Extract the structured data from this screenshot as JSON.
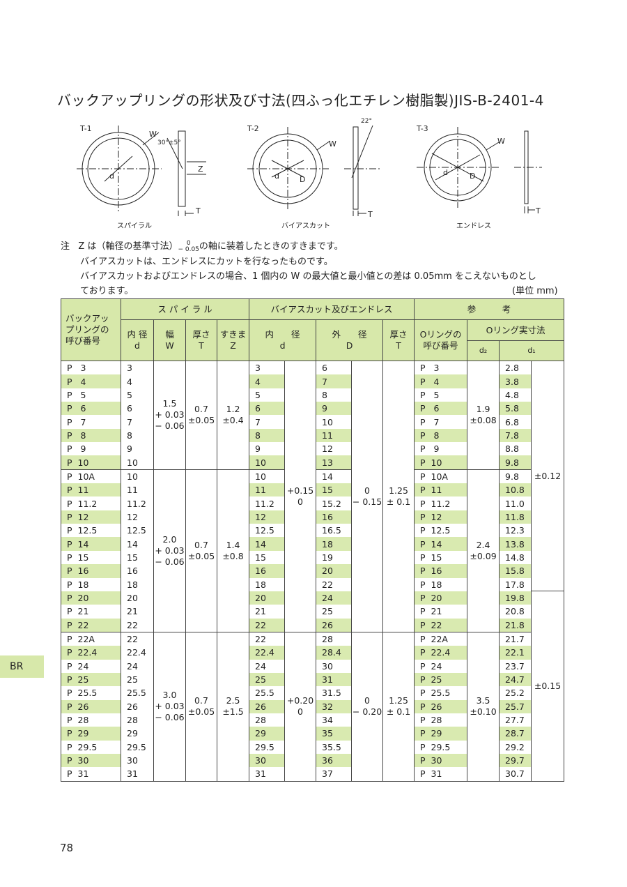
{
  "header": {
    "title": "バックアップリングの形状及び寸法(四ふっ化エチレン樹脂製)JIS-B-2401-4"
  },
  "diagrams": [
    {
      "label": "T-1",
      "caption": "スパイラル",
      "w": "W",
      "angle": "30°±5°",
      "z": "Z",
      "d": "d",
      "t": "T"
    },
    {
      "label": "T-2",
      "caption": "バイアスカット",
      "w": "W",
      "angle": "22°",
      "d": "d",
      "D": "D",
      "t": "T"
    },
    {
      "label": "T-3",
      "caption": "エンドレス",
      "w": "W",
      "d": "d",
      "D": "D",
      "t": "T"
    }
  ],
  "notes": {
    "label": "注",
    "before": "Z は（軸径の基準寸法）",
    "tol_upper": "0",
    "tol_lower": "− 0.05",
    "after": "の軸に装着したときのすきまです。",
    "lines": [
      "バイアスカットは、エンドレスにカットを行なったものです。",
      "バイアスカットおよびエンドレスの場合、1 個内の W の最大値と最小値との差は 0.05mm をこえないものとし",
      "ております。"
    ],
    "unit": "(単位 mm)"
  },
  "table": {
    "headers": {
      "number": [
        "バックアッ",
        "プリングの",
        "呼び番号"
      ],
      "spiral": "ス パ イ ラ ル",
      "bias": "バイアスカット及びエンドレス",
      "reference": "参　　　考",
      "sd": [
        "内 径",
        "d"
      ],
      "sw": [
        "幅",
        "W"
      ],
      "st": [
        "厚さ",
        "T"
      ],
      "sz": [
        "すきま",
        "Z"
      ],
      "bd": [
        "内　　径",
        "d"
      ],
      "bD": [
        "外　　径",
        "D"
      ],
      "bt": [
        "厚さ",
        "T"
      ],
      "oring_no": [
        "Oリングの",
        "呼び番号"
      ],
      "oring_size": "Oリング実寸法",
      "d2": "d₂",
      "d1": "d₁"
    },
    "rows": [
      {
        "cells": [
          "P   3",
          "3",
          "3",
          "6",
          "P   3",
          "2.8"
        ],
        "spiral": {
          "W": [
            "1.5",
            "+ 0.03",
            "− 0.06"
          ],
          "T": [
            "0.7",
            "±0.05"
          ],
          "Z": [
            "1.2",
            "±0.4"
          ]
        },
        "bias": {
          "d_tol": [
            "+0.15",
            "0"
          ],
          "D_tol": [
            "0",
            "− 0.15"
          ],
          "T": [
            "1.25",
            "± 0.1"
          ]
        },
        "d2": [
          "1.9",
          "±0.08"
        ],
        "d1_tol": "±0.12"
      },
      {
        "cells": [
          "P   4",
          "4",
          "4",
          "7",
          "P   4",
          "3.8"
        ]
      },
      {
        "cells": [
          "P   5",
          "5",
          "5",
          "8",
          "P   5",
          "4.8"
        ]
      },
      {
        "cells": [
          "P   6",
          "6",
          "6",
          "9",
          "P   6",
          "5.8"
        ]
      },
      {
        "cells": [
          "P   7",
          "7",
          "7",
          "10",
          "P   7",
          "6.8"
        ]
      },
      {
        "cells": [
          "P   8",
          "8",
          "8",
          "11",
          "P   8",
          "7.8"
        ]
      },
      {
        "cells": [
          "P   9",
          "9",
          "9",
          "12",
          "P   9",
          "8.8"
        ]
      },
      {
        "cells": [
          "P  10",
          "10",
          "10",
          "13",
          "P  10",
          "9.8"
        ]
      },
      {
        "cells": [
          "P  10A",
          "10",
          "10",
          "14",
          "P  10A",
          "9.8"
        ],
        "spiral": {
          "W": [
            "2.0",
            "+ 0.03",
            "− 0.06"
          ],
          "T": [
            "0.7",
            "±0.05"
          ],
          "Z": [
            "1.4",
            "±0.8"
          ]
        },
        "d2": [
          "2.4",
          "±0.09"
        ]
      },
      {
        "cells": [
          "P  11",
          "11",
          "11",
          "15",
          "P  11",
          "10.8"
        ]
      },
      {
        "cells": [
          "P  11.2",
          "11.2",
          "11.2",
          "15.2",
          "P  11.2",
          "11.0"
        ]
      },
      {
        "cells": [
          "P  12",
          "12",
          "12",
          "16",
          "P  12",
          "11.8"
        ]
      },
      {
        "cells": [
          "P  12.5",
          "12.5",
          "12.5",
          "16.5",
          "P  12.5",
          "12.3"
        ]
      },
      {
        "cells": [
          "P  14",
          "14",
          "14",
          "18",
          "P  14",
          "13.8"
        ]
      },
      {
        "cells": [
          "P  15",
          "15",
          "15",
          "19",
          "P  15",
          "14.8"
        ]
      },
      {
        "cells": [
          "P  16",
          "16",
          "16",
          "20",
          "P  16",
          "15.8"
        ]
      },
      {
        "cells": [
          "P  18",
          "18",
          "18",
          "22",
          "P  18",
          "17.8"
        ]
      },
      {
        "cells": [
          "P  20",
          "20",
          "20",
          "24",
          "P  20",
          "19.8"
        ],
        "d1_tol": "±0.15"
      },
      {
        "cells": [
          "P  21",
          "21",
          "21",
          "25",
          "P  21",
          "20.8"
        ]
      },
      {
        "cells": [
          "P  22",
          "22",
          "22",
          "26",
          "P  22",
          "21.8"
        ]
      },
      {
        "cells": [
          "P  22A",
          "22",
          "22",
          "28",
          "P  22A",
          "21.7"
        ],
        "spiral": {
          "W": [
            "3.0",
            "+ 0.03",
            "− 0.06"
          ],
          "T": [
            "0.7",
            "±0.05"
          ],
          "Z": [
            "2.5",
            "±1.5"
          ]
        },
        "bias": {
          "d_tol": [
            "+0.20",
            "0"
          ],
          "D_tol": [
            "0",
            "− 0.20"
          ],
          "T": [
            "1.25",
            "± 0.1"
          ]
        },
        "d2": [
          "3.5",
          "±0.10"
        ]
      },
      {
        "cells": [
          "P  22.4",
          "22.4",
          "22.4",
          "28.4",
          "P  22.4",
          "22.1"
        ]
      },
      {
        "cells": [
          "P  24",
          "24",
          "24",
          "30",
          "P  24",
          "23.7"
        ]
      },
      {
        "cells": [
          "P  25",
          "25",
          "25",
          "31",
          "P  25",
          "24.7"
        ]
      },
      {
        "cells": [
          "P  25.5",
          "25.5",
          "25.5",
          "31.5",
          "P  25.5",
          "25.2"
        ]
      },
      {
        "cells": [
          "P  26",
          "26",
          "26",
          "32",
          "P  26",
          "25.7"
        ]
      },
      {
        "cells": [
          "P  28",
          "28",
          "28",
          "34",
          "P  28",
          "27.7"
        ]
      },
      {
        "cells": [
          "P  29",
          "29",
          "29",
          "35",
          "P  29",
          "28.7"
        ]
      },
      {
        "cells": [
          "P  29.5",
          "29.5",
          "29.5",
          "35.5",
          "P  29.5",
          "29.2"
        ]
      },
      {
        "cells": [
          "P  30",
          "30",
          "30",
          "36",
          "P  30",
          "29.7"
        ]
      },
      {
        "cells": [
          "P  31",
          "31",
          "31",
          "37",
          "P  31",
          "30.7"
        ]
      }
    ]
  },
  "side_tab": "BR",
  "page_number": "78"
}
